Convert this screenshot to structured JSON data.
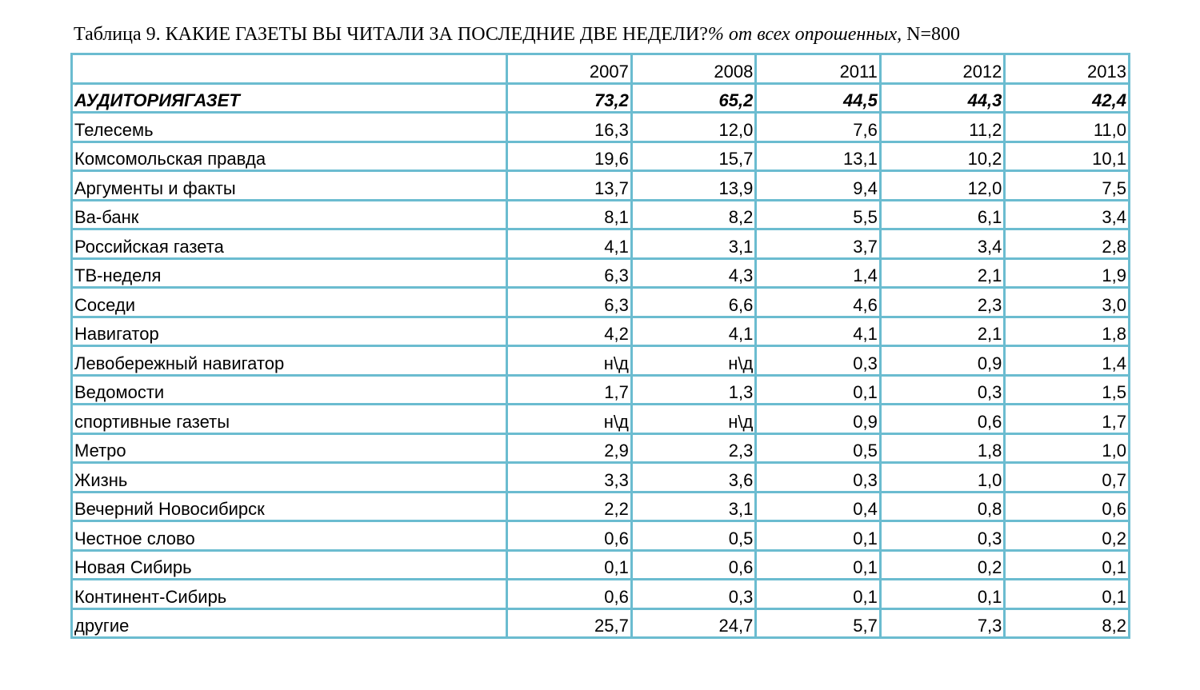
{
  "title": {
    "main": "Таблица 9. КАКИЕ ГАЗЕТЫ ВЫ ЧИТАЛИ ЗА ПОСЛЕДНИЕ ДВЕ НЕДЕЛИ?",
    "italic": "% от всех опрошенных,",
    "sample": " N=800"
  },
  "table": {
    "header": {
      "label": "",
      "years": [
        "2007",
        "2008",
        "2011",
        "2012",
        "2013"
      ]
    },
    "rows": [
      {
        "name": "АУДИТОРИЯГАЗЕТ",
        "values": [
          "73,2",
          "65,2",
          "44,5",
          "44,3",
          "42,4"
        ],
        "bold": true
      },
      {
        "name": "Телесемь",
        "values": [
          "16,3",
          "12,0",
          "7,6",
          "11,2",
          "11,0"
        ]
      },
      {
        "name": "Комсомольская правда",
        "values": [
          "19,6",
          "15,7",
          "13,1",
          "10,2",
          "10,1"
        ]
      },
      {
        "name": "Аргументы и факты",
        "values": [
          "13,7",
          "13,9",
          "9,4",
          "12,0",
          "7,5"
        ]
      },
      {
        "name": "Ва-банк",
        "values": [
          "8,1",
          "8,2",
          "5,5",
          "6,1",
          "3,4"
        ]
      },
      {
        "name": "Российская газета",
        "values": [
          "4,1",
          "3,1",
          "3,7",
          "3,4",
          "2,8"
        ]
      },
      {
        "name": "ТВ-неделя",
        "values": [
          "6,3",
          "4,3",
          "1,4",
          "2,1",
          "1,9"
        ]
      },
      {
        "name": "Соседи",
        "values": [
          "6,3",
          "6,6",
          "4,6",
          "2,3",
          "3,0"
        ]
      },
      {
        "name": "Навигатор",
        "values": [
          "4,2",
          "4,1",
          "4,1",
          "2,1",
          "1,8"
        ]
      },
      {
        "name": "Левобережный навигатор",
        "values": [
          "н\\д",
          "н\\д",
          "0,3",
          "0,9",
          "1,4"
        ]
      },
      {
        "name": "Ведомости",
        "values": [
          "1,7",
          "1,3",
          "0,1",
          "0,3",
          "1,5"
        ]
      },
      {
        "name": "спортивные газеты",
        "values": [
          "н\\д",
          "н\\д",
          "0,9",
          "0,6",
          "1,7"
        ]
      },
      {
        "name": "Метро",
        "values": [
          "2,9",
          "2,3",
          "0,5",
          "1,8",
          "1,0"
        ]
      },
      {
        "name": "Жизнь",
        "values": [
          "3,3",
          "3,6",
          "0,3",
          "1,0",
          "0,7"
        ]
      },
      {
        "name": "Вечерний Новосибирск",
        "values": [
          "2,2",
          "3,1",
          "0,4",
          "0,8",
          "0,6"
        ]
      },
      {
        "name": "Честное слово",
        "values": [
          "0,6",
          "0,5",
          "0,1",
          "0,3",
          "0,2"
        ]
      },
      {
        "name": "Новая Сибирь",
        "values": [
          "0,1",
          "0,6",
          "0,1",
          "0,2",
          "0,1"
        ]
      },
      {
        "name": "Континент-Сибирь",
        "values": [
          "0,6",
          "0,3",
          "0,1",
          "0,1",
          "0,1"
        ]
      },
      {
        "name": "другие",
        "values": [
          "25,7",
          "24,7",
          "5,7",
          "7,3",
          "8,2"
        ]
      }
    ]
  },
  "colors": {
    "grid": "#6bbcd0",
    "text": "#000000"
  }
}
